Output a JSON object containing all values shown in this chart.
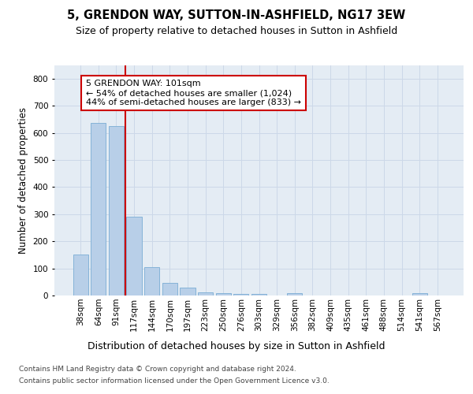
{
  "title": "5, GRENDON WAY, SUTTON-IN-ASHFIELD, NG17 3EW",
  "subtitle": "Size of property relative to detached houses in Sutton in Ashfield",
  "xlabel": "Distribution of detached houses by size in Sutton in Ashfield",
  "ylabel": "Number of detached properties",
  "categories": [
    "38sqm",
    "64sqm",
    "91sqm",
    "117sqm",
    "144sqm",
    "170sqm",
    "197sqm",
    "223sqm",
    "250sqm",
    "276sqm",
    "303sqm",
    "329sqm",
    "356sqm",
    "382sqm",
    "409sqm",
    "435sqm",
    "461sqm",
    "488sqm",
    "514sqm",
    "541sqm",
    "567sqm"
  ],
  "values": [
    150,
    635,
    625,
    290,
    105,
    47,
    30,
    12,
    10,
    7,
    7,
    0,
    10,
    0,
    0,
    0,
    0,
    0,
    0,
    10,
    0
  ],
  "bar_color": "#b8cfe8",
  "bar_edge_color": "#7aadd4",
  "red_line_x": 2.5,
  "red_line_color": "#cc0000",
  "annotation_text": "5 GRENDON WAY: 101sqm\n← 54% of detached houses are smaller (1,024)\n44% of semi-detached houses are larger (833) →",
  "annotation_box_color": "#ffffff",
  "annotation_box_edge": "#cc0000",
  "ylim": [
    0,
    850
  ],
  "yticks": [
    0,
    100,
    200,
    300,
    400,
    500,
    600,
    700,
    800
  ],
  "grid_color": "#ccd8e8",
  "background_color": "#e4ecf4",
  "footer_line1": "Contains HM Land Registry data © Crown copyright and database right 2024.",
  "footer_line2": "Contains public sector information licensed under the Open Government Licence v3.0.",
  "title_fontsize": 10.5,
  "subtitle_fontsize": 9,
  "xlabel_fontsize": 9,
  "ylabel_fontsize": 8.5,
  "tick_fontsize": 7.5,
  "annotation_fontsize": 8,
  "footer_fontsize": 6.5
}
